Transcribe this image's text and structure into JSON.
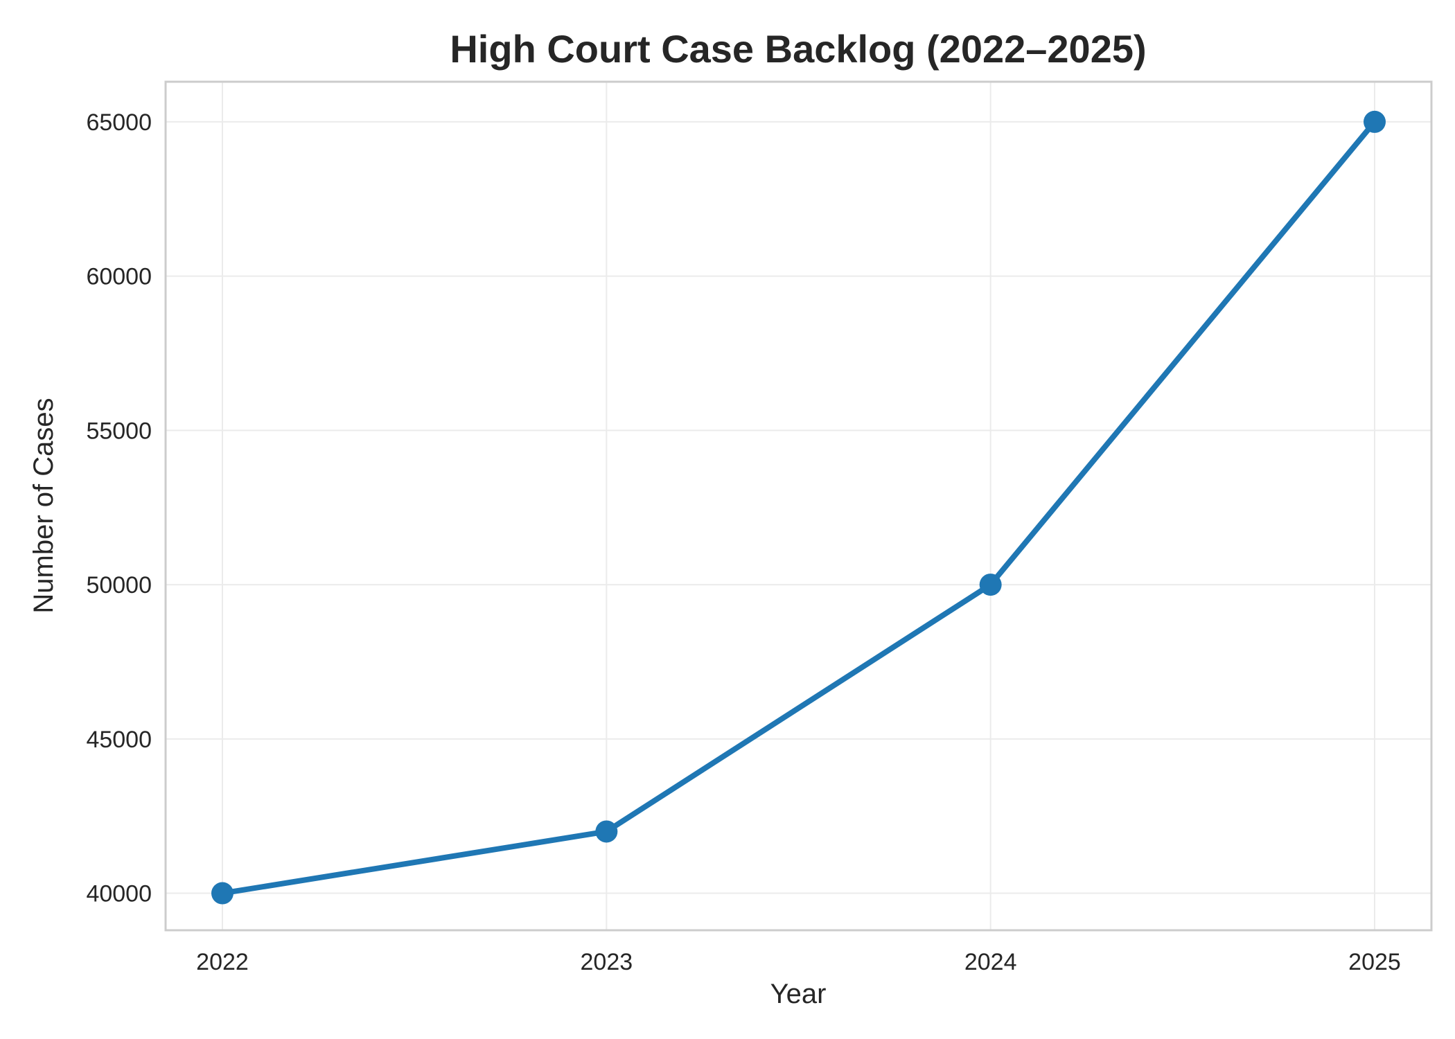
{
  "chart_data": {
    "type": "line",
    "title": "High Court Case Backlog (2022–2025)",
    "xlabel": "Year",
    "ylabel": "Number of Cases",
    "categories": [
      "2022",
      "2023",
      "2024",
      "2025"
    ],
    "series": [
      {
        "values": [
          40000,
          42000,
          50000,
          65000
        ],
        "color": "#1f77b4",
        "marker": "circle"
      }
    ],
    "ylim": [
      38800,
      66300
    ],
    "yticks": [
      40000,
      45000,
      50000,
      55000,
      60000,
      65000
    ],
    "grid": true,
    "legend": "none",
    "colors": {
      "line": "#1f77b4",
      "grid": "#ebebeb",
      "spine": "#cccccc",
      "text": "#262626"
    }
  }
}
